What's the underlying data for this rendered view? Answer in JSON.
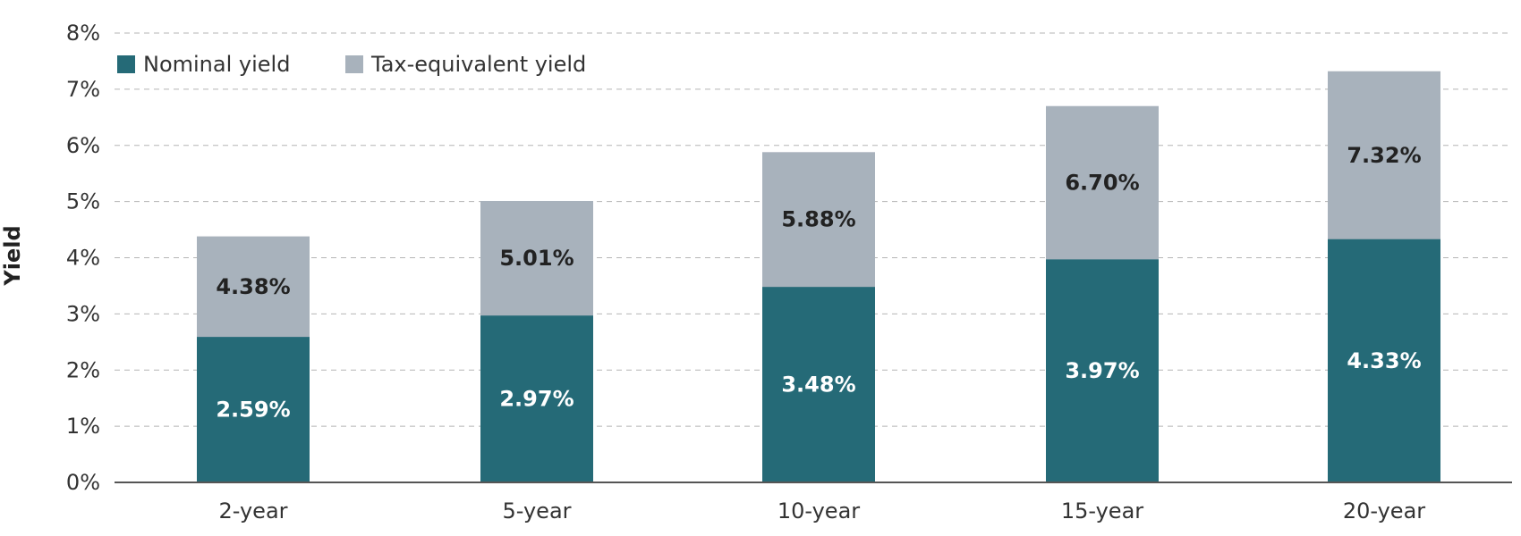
{
  "chart_data": {
    "type": "bar",
    "stacked": false,
    "overlapping": true,
    "categories": [
      "2-year",
      "5-year",
      "10-year",
      "15-year",
      "20-year"
    ],
    "series": [
      {
        "name": "Tax-equivalent yield",
        "values": [
          4.38,
          5.01,
          5.88,
          6.7,
          7.32
        ],
        "labels": [
          "4.38%",
          "5.01%",
          "5.88%",
          "6.70%",
          "7.32%"
        ],
        "color": "#a8b2bc",
        "label_color": "#222222"
      },
      {
        "name": "Nominal yield",
        "values": [
          2.59,
          2.97,
          3.48,
          3.97,
          4.33
        ],
        "labels": [
          "2.59%",
          "2.97%",
          "3.48%",
          "3.97%",
          "4.33%"
        ],
        "color": "#256a77",
        "label_color": "#ffffff"
      }
    ],
    "title": "",
    "xlabel": "",
    "ylabel": "Yield",
    "ylim": [
      0,
      8
    ],
    "yticks": [
      0,
      1,
      2,
      3,
      4,
      5,
      6,
      7,
      8
    ],
    "ytick_labels": [
      "0%",
      "1%",
      "2%",
      "3%",
      "4%",
      "5%",
      "6%",
      "7%",
      "8%"
    ],
    "grid": true,
    "legend": {
      "placement": "top-left",
      "orientation": "horizontal",
      "entries": [
        {
          "label": "Nominal yield",
          "color": "#256a77"
        },
        {
          "label": "Tax-equivalent yield",
          "color": "#a8b2bc"
        }
      ]
    }
  }
}
